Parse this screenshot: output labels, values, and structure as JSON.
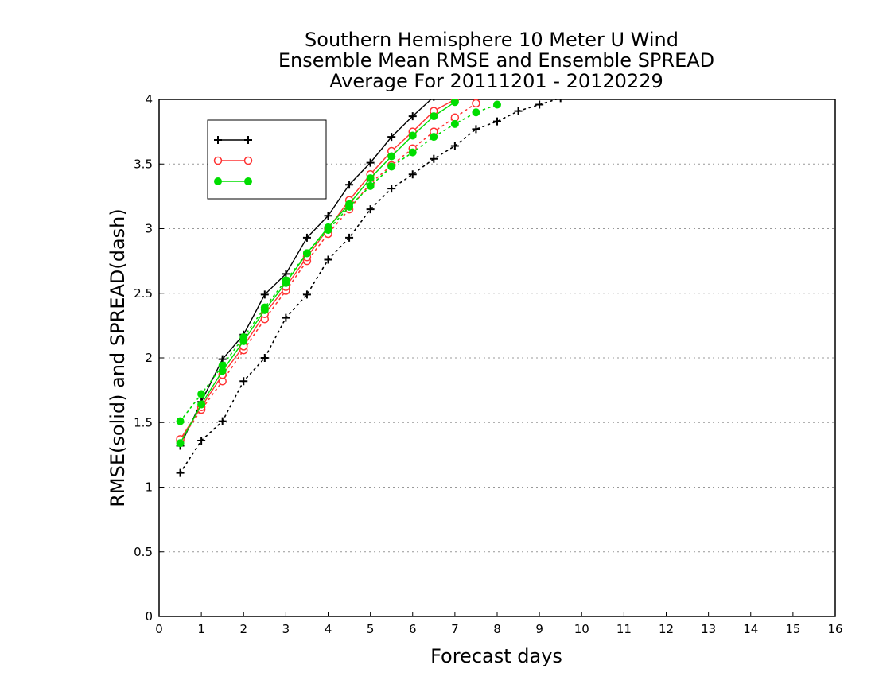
{
  "chart_data": {
    "type": "line",
    "title_lines": [
      "Southern Hemisphere 10 Meter U Wind",
      "Ensemble Mean RMSE and Ensemble SPREAD",
      "Average For 20111201 - 20120229"
    ],
    "xlabel": "Forecast days",
    "ylabel": "RMSE(solid) and SPREAD(dash)",
    "xlim": [
      0,
      16
    ],
    "ylim": [
      0,
      4
    ],
    "x_ticks": [
      "0",
      "1",
      "2",
      "3",
      "4",
      "5",
      "6",
      "7",
      "8",
      "9",
      "10",
      "11",
      "12",
      "13",
      "14",
      "15",
      "16"
    ],
    "y_ticks": [
      "0",
      "0.5",
      "1",
      "1.5",
      "2",
      "2.5",
      "3",
      "3.5",
      "4"
    ],
    "grid": "horizontal dotted",
    "legend_position": "top-left",
    "series": [
      {
        "name": "",
        "color": "#000000",
        "marker": "plus",
        "rmse": {
          "x": [
            0.5,
            1,
            1.5,
            2,
            2.5,
            3,
            3.5,
            4,
            4.5,
            5,
            5.5,
            6,
            6.5
          ],
          "y": [
            1.32,
            1.66,
            1.99,
            2.18,
            2.49,
            2.65,
            2.93,
            3.1,
            3.34,
            3.51,
            3.71,
            3.87,
            4.02
          ]
        },
        "spread": {
          "x": [
            0.5,
            1,
            1.5,
            2,
            2.5,
            3,
            3.5,
            4,
            4.5,
            5,
            5.5,
            6,
            6.5,
            7,
            7.5,
            8,
            8.5,
            9,
            9.5
          ],
          "y": [
            1.11,
            1.36,
            1.51,
            1.82,
            2.0,
            2.31,
            2.49,
            2.76,
            2.93,
            3.15,
            3.31,
            3.42,
            3.54,
            3.64,
            3.77,
            3.83,
            3.91,
            3.96,
            4.01
          ]
        }
      },
      {
        "name": "",
        "color": "#ff3333",
        "marker": "open-circle",
        "rmse": {
          "x": [
            0.5,
            1,
            1.5,
            2,
            2.5,
            3,
            3.5,
            4,
            4.5,
            5,
            5.5,
            6,
            6.5,
            7
          ],
          "y": [
            1.37,
            1.62,
            1.87,
            2.09,
            2.34,
            2.55,
            2.78,
            3.0,
            3.22,
            3.42,
            3.6,
            3.75,
            3.91,
            4.0
          ]
        },
        "spread": {
          "x": [
            0.5,
            1,
            1.5,
            2,
            2.5,
            3,
            3.5,
            4,
            4.5,
            5,
            5.5,
            6,
            6.5,
            7,
            7.5
          ],
          "y": [
            1.36,
            1.6,
            1.82,
            2.06,
            2.3,
            2.52,
            2.75,
            2.96,
            3.15,
            3.35,
            3.49,
            3.62,
            3.75,
            3.86,
            3.97
          ]
        }
      },
      {
        "name": "",
        "color": "#00dd00",
        "marker": "filled-circle",
        "rmse": {
          "x": [
            0.5,
            1,
            1.5,
            2,
            2.5,
            3,
            3.5,
            4,
            4.5,
            5,
            5.5,
            6,
            6.5,
            7
          ],
          "y": [
            1.34,
            1.64,
            1.9,
            2.13,
            2.37,
            2.58,
            2.81,
            3.01,
            3.19,
            3.39,
            3.56,
            3.72,
            3.87,
            3.98
          ]
        },
        "spread": {
          "x": [
            0.5,
            1,
            1.5,
            2,
            2.5,
            3,
            3.5,
            4,
            4.5,
            5,
            5.5,
            6,
            6.5,
            7,
            7.5,
            8
          ],
          "y": [
            1.51,
            1.72,
            1.94,
            2.16,
            2.39,
            2.6,
            2.81,
            2.99,
            3.17,
            3.33,
            3.48,
            3.59,
            3.71,
            3.81,
            3.9,
            3.96
          ]
        }
      }
    ]
  }
}
